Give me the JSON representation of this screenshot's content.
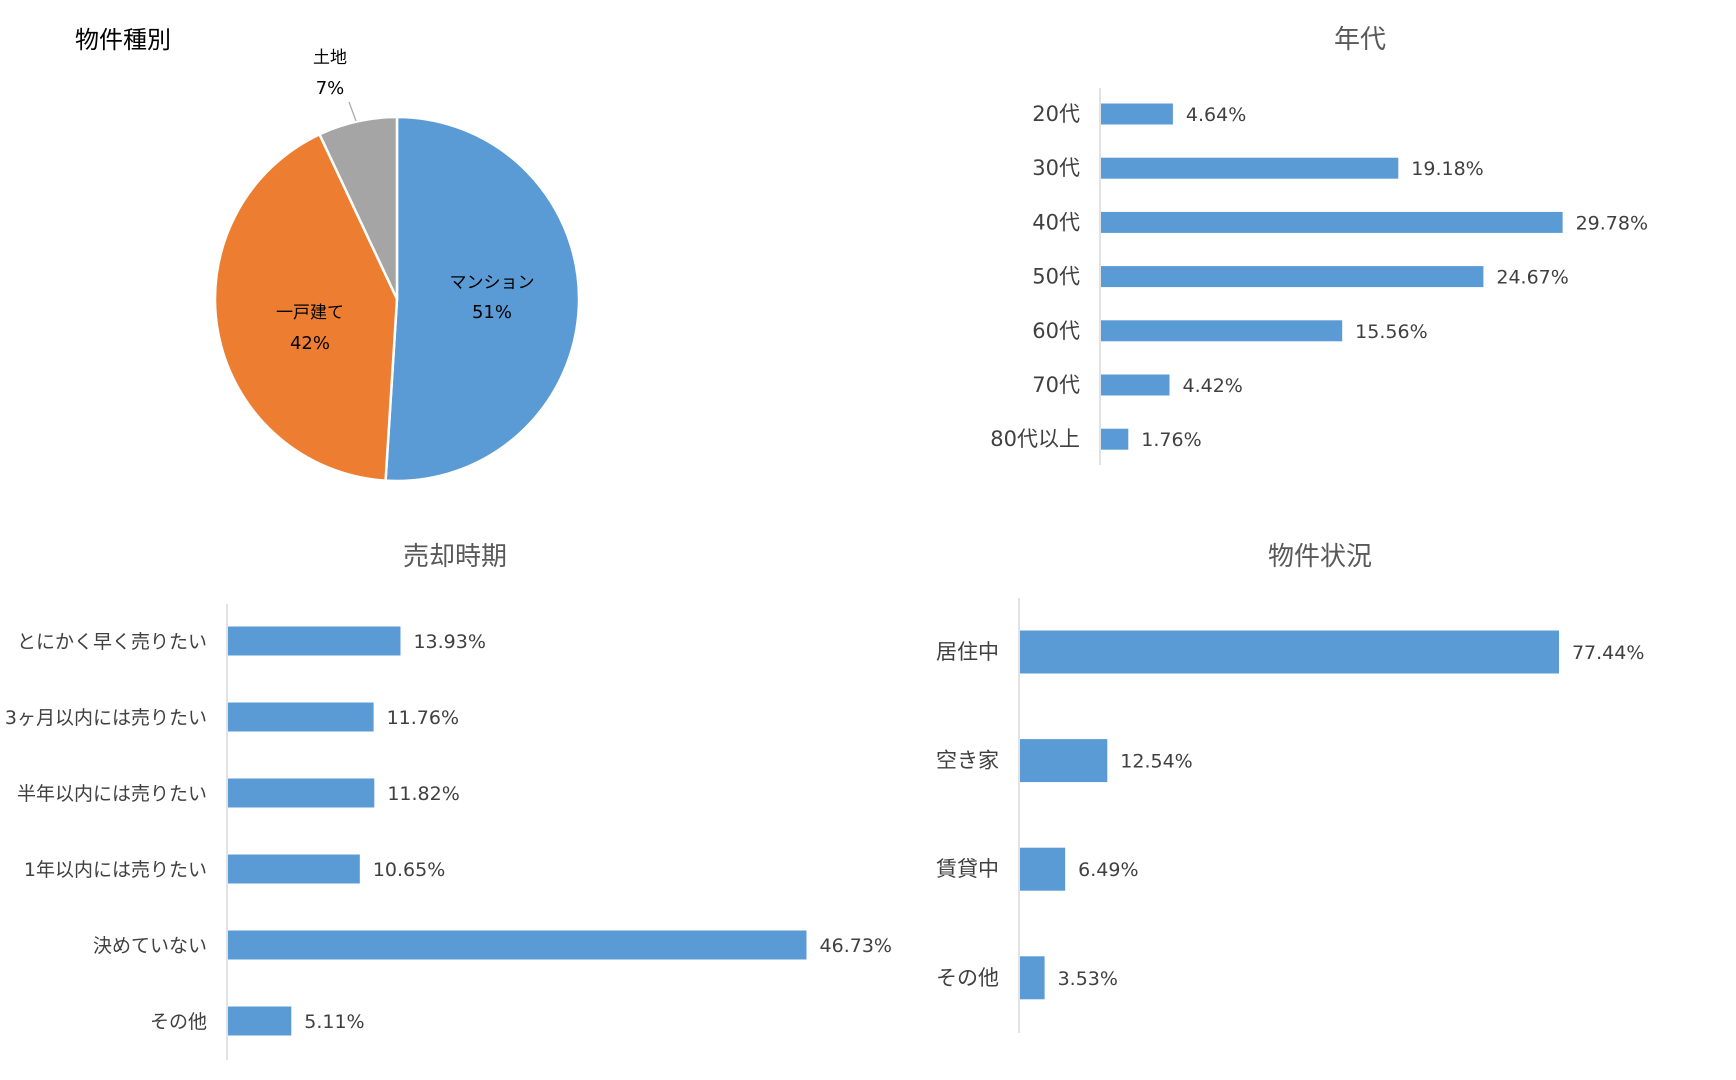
{
  "colors": {
    "bar": "#5B9BD5",
    "pie": [
      "#5B9BD5",
      "#ED7D31",
      "#A5A5A5"
    ],
    "axis": "#D9D9D9",
    "text": "#404040"
  },
  "chart_data": [
    {
      "id": "property-type",
      "type": "pie",
      "title": "物件種別",
      "slices": [
        {
          "label": "マンション",
          "value": 51,
          "display": "51%"
        },
        {
          "label": "一戸建て",
          "value": 42,
          "display": "42%"
        },
        {
          "label": "土地",
          "value": 7,
          "display": "7%"
        }
      ]
    },
    {
      "id": "age-group",
      "type": "bar",
      "orientation": "horizontal",
      "title": "年代",
      "categories": [
        "20代",
        "30代",
        "40代",
        "50代",
        "60代",
        "70代",
        "80代以上"
      ],
      "values": [
        4.64,
        19.18,
        29.78,
        24.67,
        15.56,
        4.42,
        1.76
      ],
      "labels": [
        "4.64%",
        "19.18%",
        "29.78%",
        "24.67%",
        "15.56%",
        "4.42%",
        "1.76%"
      ]
    },
    {
      "id": "sale-timing",
      "type": "bar",
      "orientation": "horizontal",
      "title": "売却時期",
      "categories": [
        "とにかく早く売りたい",
        "3ヶ月以内には売りたい",
        "半年以内には売りたい",
        "1年以内には売りたい",
        "決めていない",
        "その他"
      ],
      "values": [
        13.93,
        11.76,
        11.82,
        10.65,
        46.73,
        5.11
      ],
      "labels": [
        "13.93%",
        "11.76%",
        "11.82%",
        "10.65%",
        "46.73%",
        "5.11%"
      ]
    },
    {
      "id": "property-status",
      "type": "bar",
      "orientation": "horizontal",
      "title": "物件状況",
      "categories": [
        "居住中",
        "空き家",
        "賃貸中",
        "その他"
      ],
      "values": [
        77.44,
        12.54,
        6.49,
        3.53
      ],
      "labels": [
        "77.44%",
        "12.54%",
        "6.49%",
        "3.53%"
      ]
    }
  ]
}
